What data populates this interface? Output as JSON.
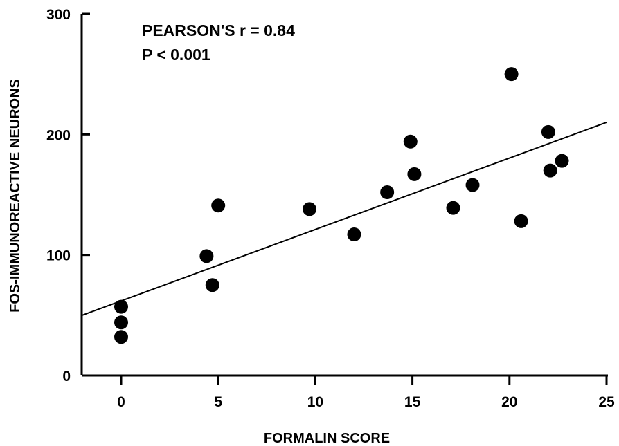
{
  "chart_data": {
    "type": "scatter",
    "title": "",
    "xlabel": "FORMALIN SCORE",
    "ylabel": "FOS-IMMUNOREACTIVE NEURONS",
    "xlim": [
      -2,
      25
    ],
    "ylim": [
      0,
      300
    ],
    "xticks": [
      0,
      5,
      10,
      15,
      20,
      25
    ],
    "yticks": [
      0,
      100,
      200,
      300
    ],
    "grid": false,
    "annotations": [
      "PEARSON'S r = 0.84",
      "P < 0.001"
    ],
    "series": [
      {
        "points": [
          {
            "x": 0,
            "y": 57
          },
          {
            "x": 0,
            "y": 44
          },
          {
            "x": 0,
            "y": 32
          },
          {
            "x": 4.4,
            "y": 99
          },
          {
            "x": 4.7,
            "y": 75
          },
          {
            "x": 5.0,
            "y": 141
          },
          {
            "x": 9.7,
            "y": 138
          },
          {
            "x": 12.0,
            "y": 117
          },
          {
            "x": 13.7,
            "y": 152
          },
          {
            "x": 14.9,
            "y": 194
          },
          {
            "x": 15.1,
            "y": 167
          },
          {
            "x": 17.1,
            "y": 139
          },
          {
            "x": 18.1,
            "y": 158
          },
          {
            "x": 20.1,
            "y": 250
          },
          {
            "x": 20.6,
            "y": 128
          },
          {
            "x": 22.0,
            "y": 202
          },
          {
            "x": 22.1,
            "y": 170
          },
          {
            "x": 22.7,
            "y": 178
          }
        ]
      }
    ],
    "regression_line": {
      "x": [
        -2,
        25
      ],
      "y": [
        50,
        210
      ]
    }
  }
}
